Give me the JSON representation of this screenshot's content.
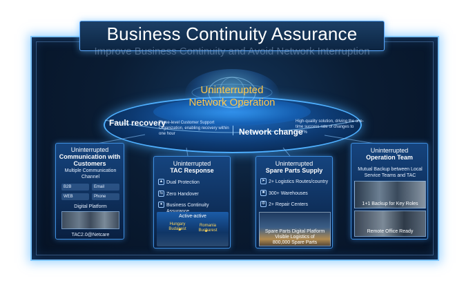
{
  "title": "Business Continuity Assurance",
  "subtitle": "Improve Business Continuity and Avoid Network Interruption",
  "hub": {
    "line1": "Uninterrupted",
    "line2": "Network Operation",
    "fault_recovery": {
      "label": "Fault recovery",
      "desc": "Three-level Customer Support Organization, enabling recovery within one hour"
    },
    "network_change": {
      "label": "Network change",
      "desc": "High-quality solution, driving the one-time success rate of changes to 99.7%"
    }
  },
  "cards": [
    {
      "head1": "Uninterrupted",
      "head2": "Communication with Customers",
      "sub": "Multiple Communication Channel",
      "chips": [
        "B2B",
        "Email",
        "WEB",
        "Phone"
      ],
      "platform": "Digital Platform",
      "footer": "TAC2.0@Netcare"
    },
    {
      "head1": "Uninterrupted",
      "head2": "TAC Response",
      "items": [
        "Dual Protection",
        "Zero Handover",
        "Business Continuity Assurance"
      ],
      "band": "Active-active",
      "city1": "Hungary Budapest",
      "city2": "Romania Bucharest"
    },
    {
      "head1": "Uninterrupted",
      "head2": "Spare Parts Supply",
      "items": [
        "2+ Logistics Routes/country",
        "300+ Warehouses",
        "2+ Repair Centers"
      ],
      "caption1": "Spare Parts Digital Platform",
      "caption2": "Visible Logistics of",
      "caption3": "800,000 Spare Parts"
    },
    {
      "head1": "Uninterrupted",
      "head2": "Operation Team",
      "sub": "Mutual Backup between Local Service Teams and TAC",
      "photo1": "1+1 Backup for Key Roles",
      "photo2": "Remote Office Ready"
    }
  ],
  "colors": {
    "accent": "#4fb0ff",
    "hub_text": "#ffc64a",
    "background": "#0a1c33"
  },
  "icons": [
    "globe-icon",
    "shield-icon",
    "handover-icon",
    "continuity-icon",
    "route-icon",
    "warehouse-icon",
    "repair-icon"
  ]
}
